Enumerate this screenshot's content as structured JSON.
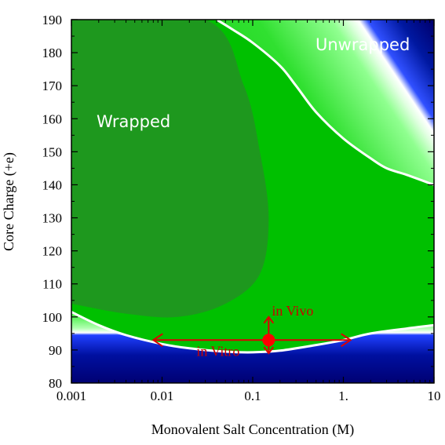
{
  "chart_data": {
    "type": "heatmap",
    "title": "",
    "xlabel": "Monovalent Salt Concentration (M)",
    "ylabel": "Core Charge (+e)",
    "x_scale": "log",
    "xlim": [
      0.001,
      10
    ],
    "ylim": [
      80,
      190
    ],
    "x_ticks": [
      0.001,
      0.01,
      0.1,
      1,
      10
    ],
    "x_tick_labels": [
      "0.001",
      "0.01",
      "0.1",
      "1.",
      "10"
    ],
    "y_ticks": [
      80,
      90,
      100,
      110,
      120,
      130,
      140,
      150,
      160,
      170,
      180,
      190
    ],
    "y_tick_labels": [
      "80",
      "90",
      "100",
      "110",
      "120",
      "130",
      "140",
      "150",
      "160",
      "170",
      "180",
      "190"
    ],
    "regions": [
      {
        "label": "Wrapped",
        "color": "#00c000"
      },
      {
        "label": "Unwrapped",
        "color": "#000070"
      }
    ],
    "upper_boundary": {
      "x": [
        0.04,
        0.06,
        0.1,
        0.2,
        0.3,
        0.5,
        1,
        2,
        3,
        5,
        10
      ],
      "y": [
        190,
        187,
        183,
        176,
        170,
        162,
        154,
        148,
        145,
        143,
        140
      ]
    },
    "lower_boundary": {
      "x": [
        0.001,
        0.002,
        0.004,
        0.01,
        0.02,
        0.05,
        0.1,
        0.2,
        0.5,
        1,
        2,
        5,
        10
      ],
      "y": [
        101.5,
        97.5,
        94.5,
        91.8,
        90.5,
        89.5,
        89.3,
        89.8,
        91.5,
        93.0,
        95.0,
        96.5,
        97.5
      ]
    },
    "point": {
      "label": "",
      "x": 0.15,
      "y": 93,
      "color": "#ff0000"
    },
    "annotations": [
      {
        "text": "in Vivo",
        "x": 0.15,
        "y": 93,
        "range_y": [
          89,
          100
        ]
      },
      {
        "text": "in Vitro",
        "x": 0.15,
        "y": 93,
        "range_x": [
          0.008,
          1.2
        ]
      }
    ],
    "colors": {
      "wrapped": "#00c000",
      "wrapped_core": "#239023",
      "transition": "#80ff80",
      "unwrapped": "#000070",
      "unwrapped_edge": "#2030ff",
      "boundary": "#ffffff",
      "annotation": "#dd0000"
    },
    "grid": false,
    "legend": "none"
  }
}
